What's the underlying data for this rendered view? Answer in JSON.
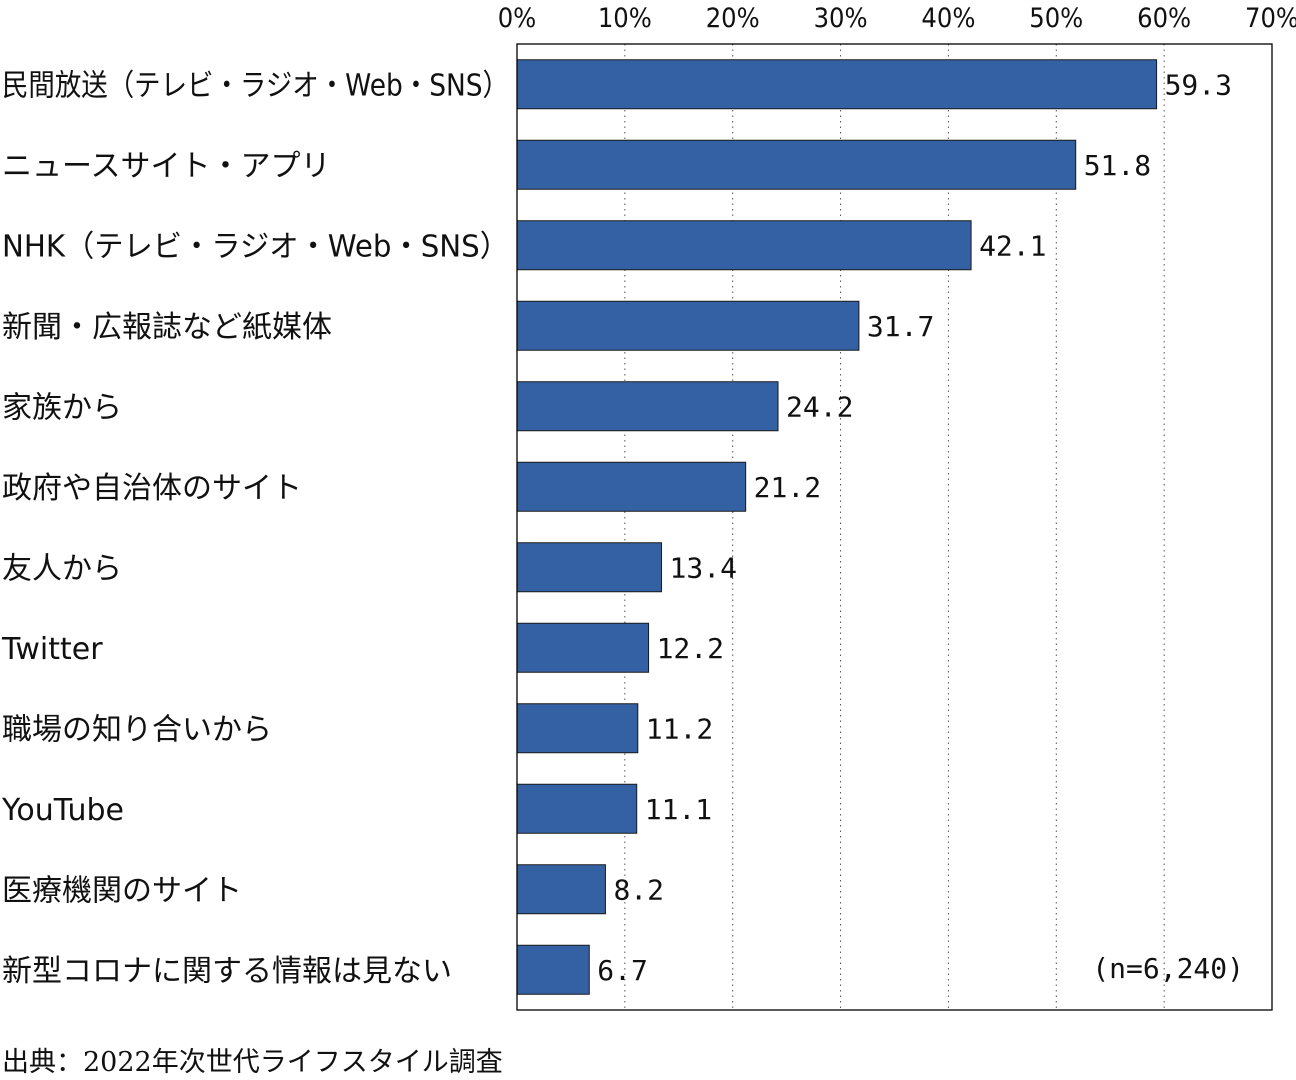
{
  "chart_data": {
    "type": "bar",
    "orientation": "horizontal",
    "categories": [
      "民間放送（テレビ・ラジオ・Web・SNS）",
      "ニュースサイト・アプリ",
      "NHK（テレビ・ラジオ・Web・SNS）",
      "新聞・広報誌など紙媒体",
      "家族から",
      "政府や自治体のサイト",
      "友人から",
      "Twitter",
      "職場の知り合いから",
      "YouTube",
      "医療機関のサイト",
      "新型コロナに関する情報は見ない"
    ],
    "values": [
      59.3,
      51.8,
      42.1,
      31.7,
      24.2,
      21.2,
      13.4,
      12.2,
      11.2,
      11.1,
      8.2,
      6.7
    ],
    "value_labels": [
      "59.3",
      "51.8",
      "42.1",
      "31.7",
      "24.2",
      "21.2",
      "13.4",
      "12.2",
      "11.2",
      "11.1",
      "8.2",
      "6.7"
    ],
    "xlim": [
      0,
      70
    ],
    "x_ticks": [
      0,
      10,
      20,
      30,
      40,
      50,
      60,
      70
    ],
    "x_tick_labels": [
      "0%",
      "10%",
      "20%",
      "30%",
      "40%",
      "50%",
      "60%",
      "70%"
    ],
    "x_axis_position": "top",
    "grid": "vertical-dotted",
    "bar_color": "#3461a4",
    "title": "",
    "xlabel": "",
    "ylabel": "",
    "annotation": "(n=6,240)"
  },
  "source_note": "出典：2022年次世代ライフスタイル調査"
}
